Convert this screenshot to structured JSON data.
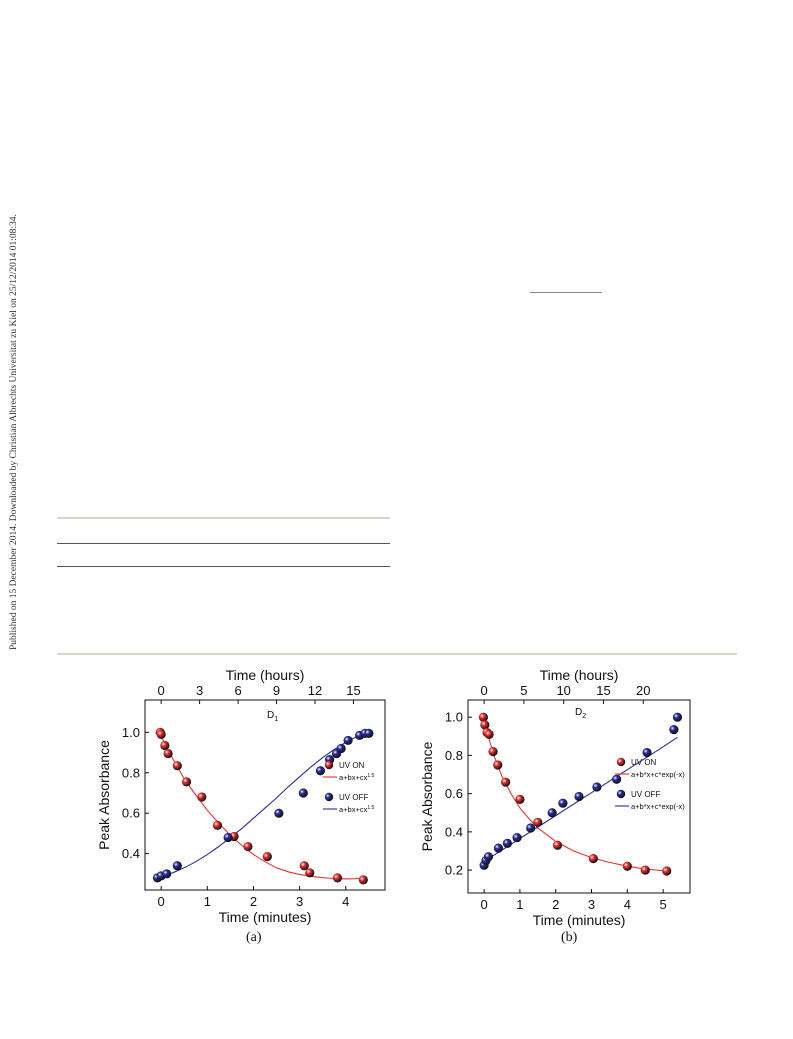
{
  "sidebar_text": "Published on 15 December 2014. Downloaded by Christian Albrechts Universitat zu Kiel on 25/12/2014 01:08:34.",
  "figures": [
    {
      "caption": "(a)",
      "panel_label": "D",
      "panel_label_sub": "1"
    },
    {
      "caption": "(b)",
      "panel_label": "D",
      "panel_label_sub": "2"
    }
  ],
  "colors": {
    "uv_on": "#e53333",
    "uv_off": "#2a2f9a"
  },
  "chart_data": [
    {
      "type": "scatter",
      "title": "",
      "xlabel": "Time (minutes)",
      "ylabel": "Peak Absorbance",
      "x2label": "Time (hours)",
      "xlim": [
        -0.35,
        4.85
      ],
      "ylim": [
        0.22,
        1.16
      ],
      "x_ticks": [
        0,
        1,
        2,
        3,
        4
      ],
      "y_ticks": [
        0.4,
        0.6,
        0.8,
        1.0
      ],
      "y_tick_labels": [
        "0.4",
        "0.6",
        "0.8",
        "1.0"
      ],
      "x2_ticks": [
        0,
        3,
        6,
        9,
        12,
        15
      ],
      "x2_per_x": 3.6,
      "legend_position": "right",
      "series": [
        {
          "name": "UV ON",
          "fit_label": "a+bx+cx",
          "fit_exp": "1.5",
          "color": "#e53333",
          "x": [
            -0.02,
            0.0,
            0.08,
            0.15,
            0.35,
            0.55,
            0.88,
            1.22,
            1.58,
            1.88,
            2.3,
            3.1,
            3.22,
            3.82,
            4.38
          ],
          "y": [
            1.0,
            0.99,
            0.935,
            0.895,
            0.835,
            0.755,
            0.68,
            0.54,
            0.485,
            0.435,
            0.385,
            0.34,
            0.305,
            0.28,
            0.27
          ],
          "fit": [
            [
              0,
              0.98
            ],
            [
              0.25,
              0.87
            ],
            [
              0.5,
              0.77
            ],
            [
              0.75,
              0.69
            ],
            [
              1.0,
              0.615
            ],
            [
              1.25,
              0.55
            ],
            [
              1.5,
              0.49
            ],
            [
              1.75,
              0.44
            ],
            [
              2.0,
              0.395
            ],
            [
              2.25,
              0.36
            ],
            [
              2.5,
              0.33
            ],
            [
              2.75,
              0.31
            ],
            [
              3.0,
              0.297
            ],
            [
              3.25,
              0.288
            ],
            [
              3.5,
              0.281
            ],
            [
              3.75,
              0.277
            ],
            [
              4.0,
              0.275
            ],
            [
              4.2,
              0.276
            ],
            [
              4.38,
              0.28
            ]
          ]
        },
        {
          "name": "UV OFF",
          "fit_label": "a+bx+cx",
          "fit_exp": "1.5",
          "color": "#2a2f9a",
          "x": [
            -0.08,
            0.0,
            0.12,
            0.35,
            1.45,
            2.55,
            3.08,
            3.45,
            3.65,
            3.8,
            3.9,
            4.05,
            4.3,
            4.42,
            4.5
          ],
          "y": [
            0.28,
            0.29,
            0.3,
            0.34,
            0.48,
            0.6,
            0.7,
            0.81,
            0.865,
            0.895,
            0.92,
            0.96,
            0.985,
            0.995,
            0.995
          ],
          "fit": [
            [
              -0.08,
              0.28
            ],
            [
              0.25,
              0.305
            ],
            [
              0.5,
              0.33
            ],
            [
              0.75,
              0.36
            ],
            [
              1.0,
              0.395
            ],
            [
              1.25,
              0.435
            ],
            [
              1.5,
              0.48
            ],
            [
              1.75,
              0.525
            ],
            [
              2.0,
              0.575
            ],
            [
              2.25,
              0.625
            ],
            [
              2.5,
              0.675
            ],
            [
              2.75,
              0.73
            ],
            [
              3.0,
              0.78
            ],
            [
              3.25,
              0.83
            ],
            [
              3.5,
              0.875
            ],
            [
              3.75,
              0.915
            ],
            [
              4.0,
              0.95
            ],
            [
              4.25,
              0.98
            ],
            [
              4.5,
              1.0
            ]
          ]
        }
      ]
    },
    {
      "type": "scatter",
      "title": "",
      "xlabel": "Time (minutes)",
      "ylabel": "Peak Absorbance",
      "x2label": "Time (hours)",
      "xlim": [
        -0.45,
        5.75
      ],
      "ylim": [
        0.08,
        1.09
      ],
      "x_ticks": [
        0,
        1,
        2,
        3,
        4,
        5
      ],
      "y_ticks": [
        0.2,
        0.4,
        0.6,
        0.8,
        1.0
      ],
      "y_tick_labels": [
        "0.2",
        "0.4",
        "0.6",
        "0.8",
        "1.0"
      ],
      "x2_ticks": [
        0,
        5,
        10,
        15,
        20
      ],
      "x2_per_x": 4.5,
      "legend_position": "right",
      "series": [
        {
          "name": "UV ON",
          "fit_label": "a+b*x+c*exp(-x)",
          "fit_exp": "",
          "color": "#e53333",
          "x": [
            -0.02,
            0.02,
            0.08,
            0.14,
            0.25,
            0.38,
            0.6,
            1.0,
            1.5,
            2.05,
            3.05,
            4.0,
            4.5,
            5.1
          ],
          "y": [
            1.0,
            0.96,
            0.92,
            0.91,
            0.82,
            0.75,
            0.66,
            0.57,
            0.45,
            0.33,
            0.26,
            0.22,
            0.2,
            0.195
          ],
          "fit": [
            [
              0,
              0.98
            ],
            [
              0.25,
              0.81
            ],
            [
              0.5,
              0.69
            ],
            [
              0.75,
              0.6
            ],
            [
              1.0,
              0.525
            ],
            [
              1.25,
              0.47
            ],
            [
              1.5,
              0.42
            ],
            [
              1.75,
              0.385
            ],
            [
              2.0,
              0.35
            ],
            [
              2.5,
              0.3
            ],
            [
              3.0,
              0.265
            ],
            [
              3.5,
              0.24
            ],
            [
              4.0,
              0.22
            ],
            [
              4.5,
              0.205
            ],
            [
              5.1,
              0.195
            ]
          ]
        },
        {
          "name": "UV OFF",
          "fit_label": "a+b*x+c*exp(-x)",
          "fit_exp": "",
          "color": "#2a2f9a",
          "x": [
            0.0,
            0.05,
            0.12,
            0.4,
            0.65,
            0.92,
            1.3,
            1.9,
            2.2,
            2.65,
            3.15,
            3.7,
            4.55,
            5.3,
            5.4
          ],
          "y": [
            0.225,
            0.25,
            0.27,
            0.315,
            0.34,
            0.37,
            0.42,
            0.5,
            0.55,
            0.585,
            0.635,
            0.675,
            0.815,
            0.935,
            1.0
          ],
          "fit": [
            [
              0,
              0.23
            ],
            [
              0.25,
              0.275
            ],
            [
              0.5,
              0.305
            ],
            [
              0.75,
              0.335
            ],
            [
              1.0,
              0.365
            ],
            [
              1.5,
              0.425
            ],
            [
              2.0,
              0.485
            ],
            [
              2.5,
              0.545
            ],
            [
              3.0,
              0.605
            ],
            [
              3.5,
              0.665
            ],
            [
              4.0,
              0.725
            ],
            [
              4.5,
              0.785
            ],
            [
              5.0,
              0.845
            ],
            [
              5.4,
              0.895
            ]
          ]
        }
      ]
    }
  ]
}
